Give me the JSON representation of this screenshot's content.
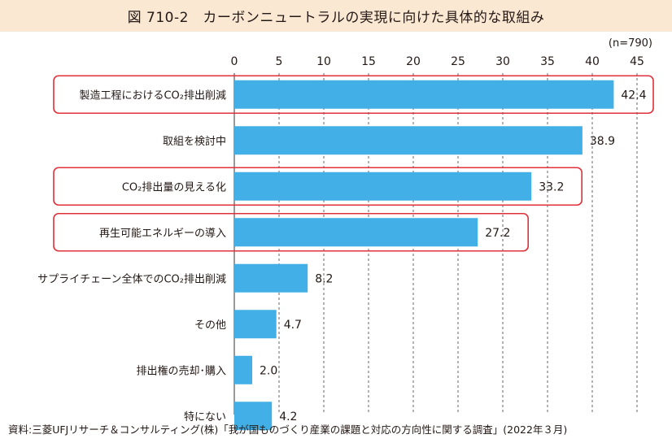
{
  "title": "図 710-2　カーボンニュートラルの実現に向けた具体的な取組み",
  "n_label": "(n=790)",
  "source": "資料:三菱UFJリサーチ＆コンサルティング(株)「我が国ものづくり産業の課題と対応の方向性に関する調査」(2022年３月)",
  "colors": {
    "bar": "#42b0e6",
    "highlight_box": "#e0303a",
    "title_bg": "#fbe8d3",
    "grid": "#555555"
  },
  "chart_data": {
    "type": "bar",
    "orientation": "horizontal",
    "title": "図 710-2　カーボンニュートラルの実現に向けた具体的な取組み",
    "xlim": [
      0,
      45
    ],
    "xticks": [
      0,
      5,
      10,
      15,
      20,
      25,
      30,
      35,
      40,
      45
    ],
    "grid": "vertical dashed",
    "categories": [
      "製造工程におけるCO₂排出削減",
      "取組を検討中",
      "CO₂排出量の見える化",
      "再生可能エネルギーの導入",
      "サプライチェーン全体でのCO₂排出削減",
      "その他",
      "排出権の売却･購入",
      "特にない"
    ],
    "values": [
      42.4,
      38.9,
      33.2,
      27.2,
      8.2,
      4.7,
      2.0,
      4.2
    ],
    "value_labels": [
      "42.4",
      "38.9",
      "33.2",
      "27.2",
      "8.2",
      "4.7",
      "2.0",
      "4.2"
    ],
    "highlighted": [
      true,
      false,
      true,
      true,
      false,
      false,
      false,
      false
    ]
  }
}
